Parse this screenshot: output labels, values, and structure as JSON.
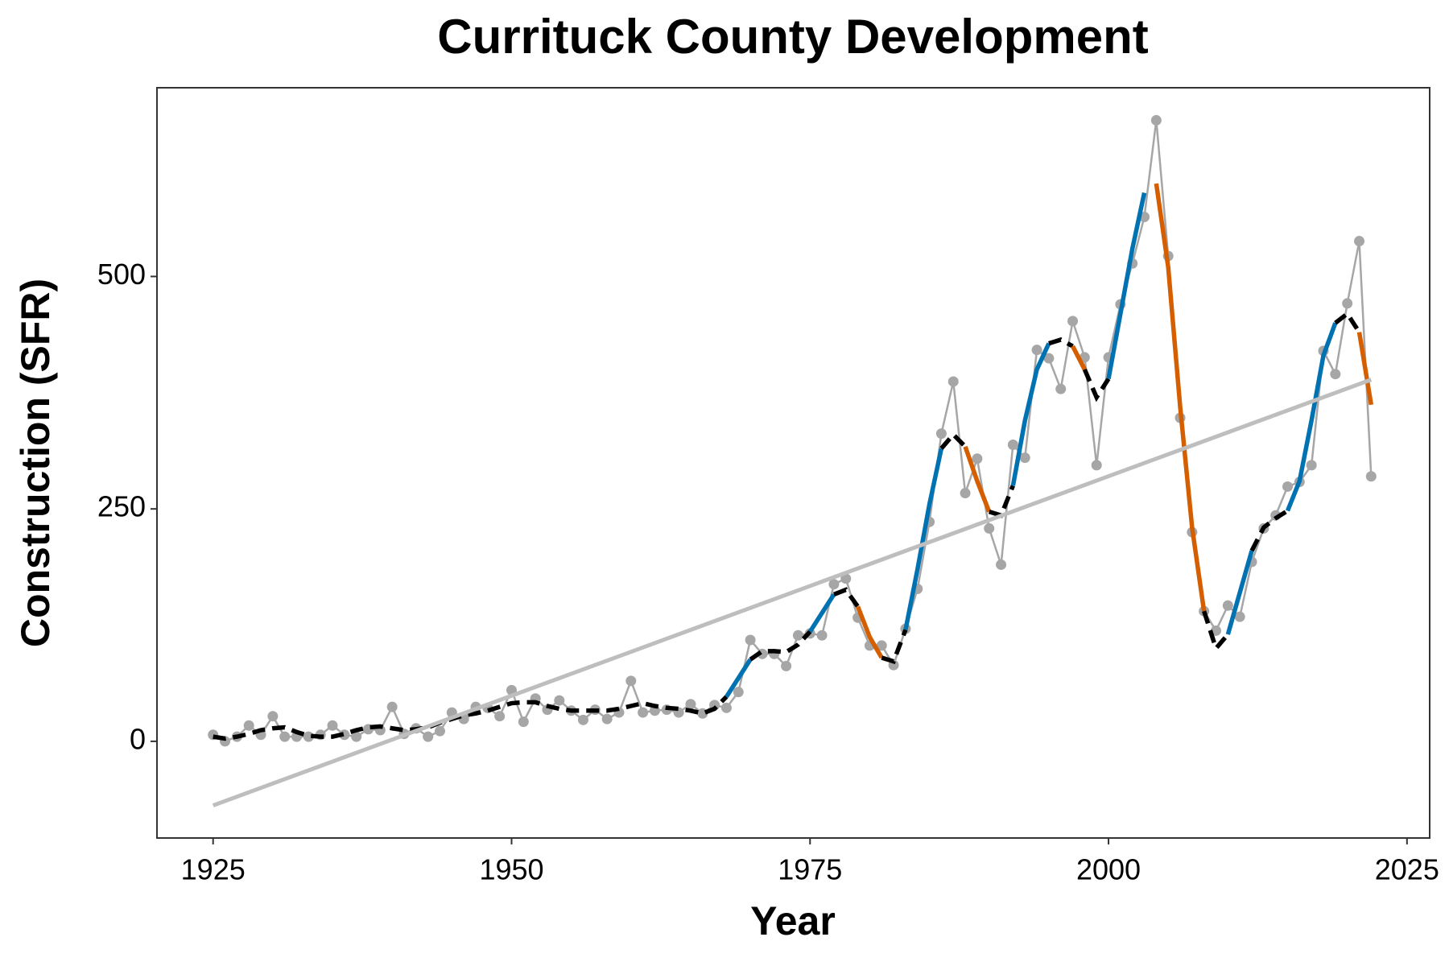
{
  "chart_data": {
    "type": "line",
    "title": "Currituck County Development",
    "x_label": "Year",
    "y_label": "Construction (SFR)",
    "xlim": [
      1920.3,
      2026.9
    ],
    "ylim": [
      -104,
      703
    ],
    "xticks": [
      1925,
      1950,
      1975,
      2000,
      2025
    ],
    "yticks": [
      0,
      250,
      500
    ],
    "x": [
      1925,
      1926,
      1927,
      1928,
      1929,
      1930,
      1931,
      1932,
      1933,
      1934,
      1935,
      1936,
      1937,
      1938,
      1939,
      1940,
      1941,
      1942,
      1943,
      1944,
      1945,
      1946,
      1947,
      1948,
      1949,
      1950,
      1951,
      1952,
      1953,
      1954,
      1955,
      1956,
      1957,
      1958,
      1959,
      1960,
      1961,
      1962,
      1963,
      1964,
      1965,
      1966,
      1967,
      1968,
      1969,
      1970,
      1971,
      1972,
      1973,
      1974,
      1975,
      1976,
      1977,
      1978,
      1979,
      1980,
      1981,
      1982,
      1983,
      1984,
      1985,
      1986,
      1987,
      1988,
      1989,
      1990,
      1991,
      1992,
      1993,
      1994,
      1995,
      1996,
      1997,
      1998,
      1999,
      2000,
      2001,
      2002,
      2003,
      2004,
      2005,
      2006,
      2007,
      2008,
      2009,
      2010,
      2011,
      2012,
      2013,
      2014,
      2015,
      2016,
      2017,
      2018,
      2019,
      2020,
      2021,
      2022
    ],
    "points": {
      "color": "#a6a6a6",
      "values": [
        7,
        0,
        5,
        17,
        7,
        27,
        5,
        5,
        5,
        7,
        17,
        7,
        5,
        13,
        12,
        37,
        8,
        14,
        5,
        11,
        31,
        24,
        37,
        36,
        27,
        55,
        21,
        46,
        34,
        44,
        33,
        23,
        34,
        24,
        31,
        65,
        31,
        33,
        34,
        31,
        40,
        30,
        39,
        36,
        53,
        109,
        94,
        94,
        81,
        114,
        116,
        114,
        169,
        175,
        133,
        103,
        103,
        82,
        121,
        164,
        236,
        331,
        387,
        267,
        304,
        229,
        190,
        319,
        305,
        421,
        412,
        379,
        452,
        413,
        297,
        413,
        470,
        514,
        564,
        668,
        522,
        348,
        225,
        140,
        119,
        146,
        134,
        193,
        229,
        243,
        274,
        279,
        297,
        420,
        395,
        471,
        538,
        285
      ]
    },
    "smooth": {
      "values": [
        5,
        3,
        5,
        8,
        12,
        14,
        15,
        10,
        6,
        5,
        5,
        8,
        12,
        15,
        16,
        14,
        12,
        13,
        15,
        20,
        24,
        28,
        30,
        33,
        37,
        41,
        42,
        42,
        38,
        35,
        33,
        33,
        33,
        33,
        35,
        38,
        41,
        38,
        36,
        35,
        33,
        30,
        35,
        48,
        68,
        88,
        97,
        97,
        96,
        104,
        118,
        138,
        158,
        163,
        145,
        112,
        90,
        86,
        120,
        185,
        255,
        315,
        330,
        317,
        280,
        247,
        243,
        275,
        345,
        400,
        428,
        432,
        425,
        400,
        370,
        390,
        460,
        530,
        590,
        600,
        510,
        360,
        230,
        140,
        100,
        115,
        160,
        205,
        230,
        240,
        248,
        280,
        345,
        415,
        450,
        460,
        440,
        362
      ],
      "segments": [
        {
          "from": 1925,
          "to": 1968,
          "color": "#000000",
          "dashed": true
        },
        {
          "from": 1968,
          "to": 1970,
          "color": "#0072b2",
          "dashed": false
        },
        {
          "from": 1970,
          "to": 1975,
          "color": "#000000",
          "dashed": true
        },
        {
          "from": 1975,
          "to": 1977,
          "color": "#0072b2",
          "dashed": false
        },
        {
          "from": 1977,
          "to": 1979,
          "color": "#000000",
          "dashed": true
        },
        {
          "from": 1979,
          "to": 1981,
          "color": "#d55e00",
          "dashed": false
        },
        {
          "from": 1981,
          "to": 1983,
          "color": "#000000",
          "dashed": true
        },
        {
          "from": 1983,
          "to": 1986,
          "color": "#0072b2",
          "dashed": false
        },
        {
          "from": 1986,
          "to": 1988,
          "color": "#000000",
          "dashed": true
        },
        {
          "from": 1988,
          "to": 1990,
          "color": "#d55e00",
          "dashed": false
        },
        {
          "from": 1990,
          "to": 1992,
          "color": "#000000",
          "dashed": true
        },
        {
          "from": 1992,
          "to": 1995,
          "color": "#0072b2",
          "dashed": false
        },
        {
          "from": 1995,
          "to": 1997,
          "color": "#000000",
          "dashed": true
        },
        {
          "from": 1997,
          "to": 1998,
          "color": "#d55e00",
          "dashed": false
        },
        {
          "from": 1998,
          "to": 2000,
          "color": "#000000",
          "dashed": true
        },
        {
          "from": 2000,
          "to": 2003,
          "color": "#0072b2",
          "dashed": false
        },
        {
          "from": 2004,
          "to": 2008,
          "color": "#d55e00",
          "dashed": false
        },
        {
          "from": 2008,
          "to": 2010,
          "color": "#000000",
          "dashed": true
        },
        {
          "from": 2010,
          "to": 2012,
          "color": "#0072b2",
          "dashed": false
        },
        {
          "from": 2012,
          "to": 2015,
          "color": "#000000",
          "dashed": true
        },
        {
          "from": 2015,
          "to": 2019,
          "color": "#0072b2",
          "dashed": false
        },
        {
          "from": 2019,
          "to": 2021,
          "color": "#000000",
          "dashed": true
        },
        {
          "from": 2021,
          "to": 2022,
          "color": "#d55e00",
          "dashed": false
        }
      ]
    },
    "trend": {
      "color": "#bebebe",
      "x": [
        1925,
        2022
      ],
      "values": [
        -69,
        389
      ]
    }
  }
}
